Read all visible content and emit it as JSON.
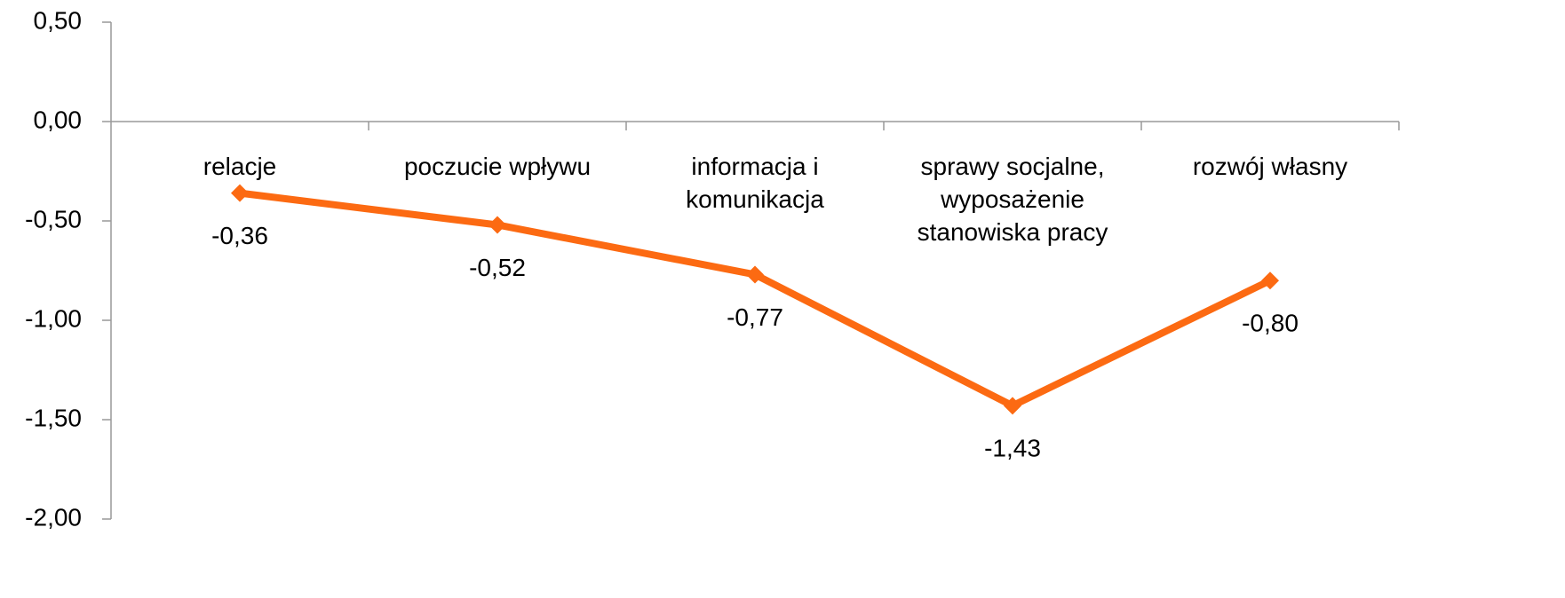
{
  "chart_data": {
    "type": "line",
    "categories": [
      "relacje",
      "poczucie wpływu",
      "informacja i komunikacja",
      "sprawy socjalne, wyposażenie stanowiska pracy",
      "rozwój własny"
    ],
    "series": [
      {
        "color": "#fc6a12",
        "values": [
          -0.36,
          -0.52,
          -0.77,
          -1.43,
          -0.8
        ],
        "value_labels": [
          "-0,36",
          "-0,52",
          "-0,77",
          "-1,43",
          "-0,80"
        ]
      }
    ],
    "ylim": [
      -2.0,
      0.5
    ],
    "yticks": [
      {
        "value": 0.5,
        "label": "0,50"
      },
      {
        "value": 0.0,
        "label": "0,00"
      },
      {
        "value": -0.5,
        "label": "-0,50"
      },
      {
        "value": -1.0,
        "label": "-1,00"
      },
      {
        "value": -1.5,
        "label": "-1,50"
      },
      {
        "value": -2.0,
        "label": "-2,00"
      }
    ],
    "grid": false
  }
}
